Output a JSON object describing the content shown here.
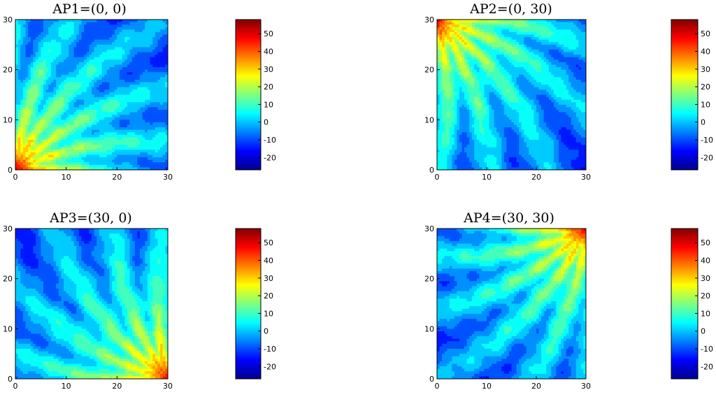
{
  "chart_data": [
    {
      "type": "heatmap",
      "title": "AP1=(0, 0)",
      "source": [
        0,
        0
      ],
      "x_ticks": [
        0,
        10,
        20,
        30
      ],
      "y_ticks": [
        0,
        10,
        20,
        30
      ],
      "xlim": [
        0,
        30
      ],
      "ylim": [
        0,
        30
      ],
      "z_range": [
        -27,
        58
      ],
      "colorbar_ticks": [
        -20,
        -10,
        0,
        10,
        20,
        30,
        40,
        50
      ],
      "colormap": "jet",
      "contour": true
    },
    {
      "type": "heatmap",
      "title": "AP2=(0, 30)",
      "source": [
        0,
        30
      ],
      "x_ticks": [
        0,
        10,
        20,
        30
      ],
      "y_ticks": [
        0,
        10,
        20,
        30
      ],
      "xlim": [
        0,
        30
      ],
      "ylim": [
        0,
        30
      ],
      "z_range": [
        -27,
        58
      ],
      "colorbar_ticks": [
        -20,
        -10,
        0,
        10,
        20,
        30,
        40,
        50
      ],
      "colormap": "jet",
      "contour": true
    },
    {
      "type": "heatmap",
      "title": "AP3=(30, 0)",
      "source": [
        30,
        0
      ],
      "x_ticks": [
        0,
        10,
        20,
        30
      ],
      "y_ticks": [
        0,
        10,
        20,
        30
      ],
      "xlim": [
        0,
        30
      ],
      "ylim": [
        0,
        30
      ],
      "z_range": [
        -27,
        58
      ],
      "colorbar_ticks": [
        -20,
        -10,
        0,
        10,
        20,
        30,
        40,
        50
      ],
      "colormap": "jet",
      "contour": true
    },
    {
      "type": "heatmap",
      "title": "AP4=(30, 30)",
      "source": [
        30,
        30
      ],
      "x_ticks": [
        0,
        10,
        20,
        30
      ],
      "y_ticks": [
        0,
        10,
        20,
        30
      ],
      "xlim": [
        0,
        30
      ],
      "ylim": [
        0,
        30
      ],
      "z_range": [
        -27,
        58
      ],
      "colorbar_ticks": [
        -20,
        -10,
        0,
        10,
        20,
        30,
        40,
        50
      ],
      "colormap": "jet",
      "contour": true
    }
  ]
}
